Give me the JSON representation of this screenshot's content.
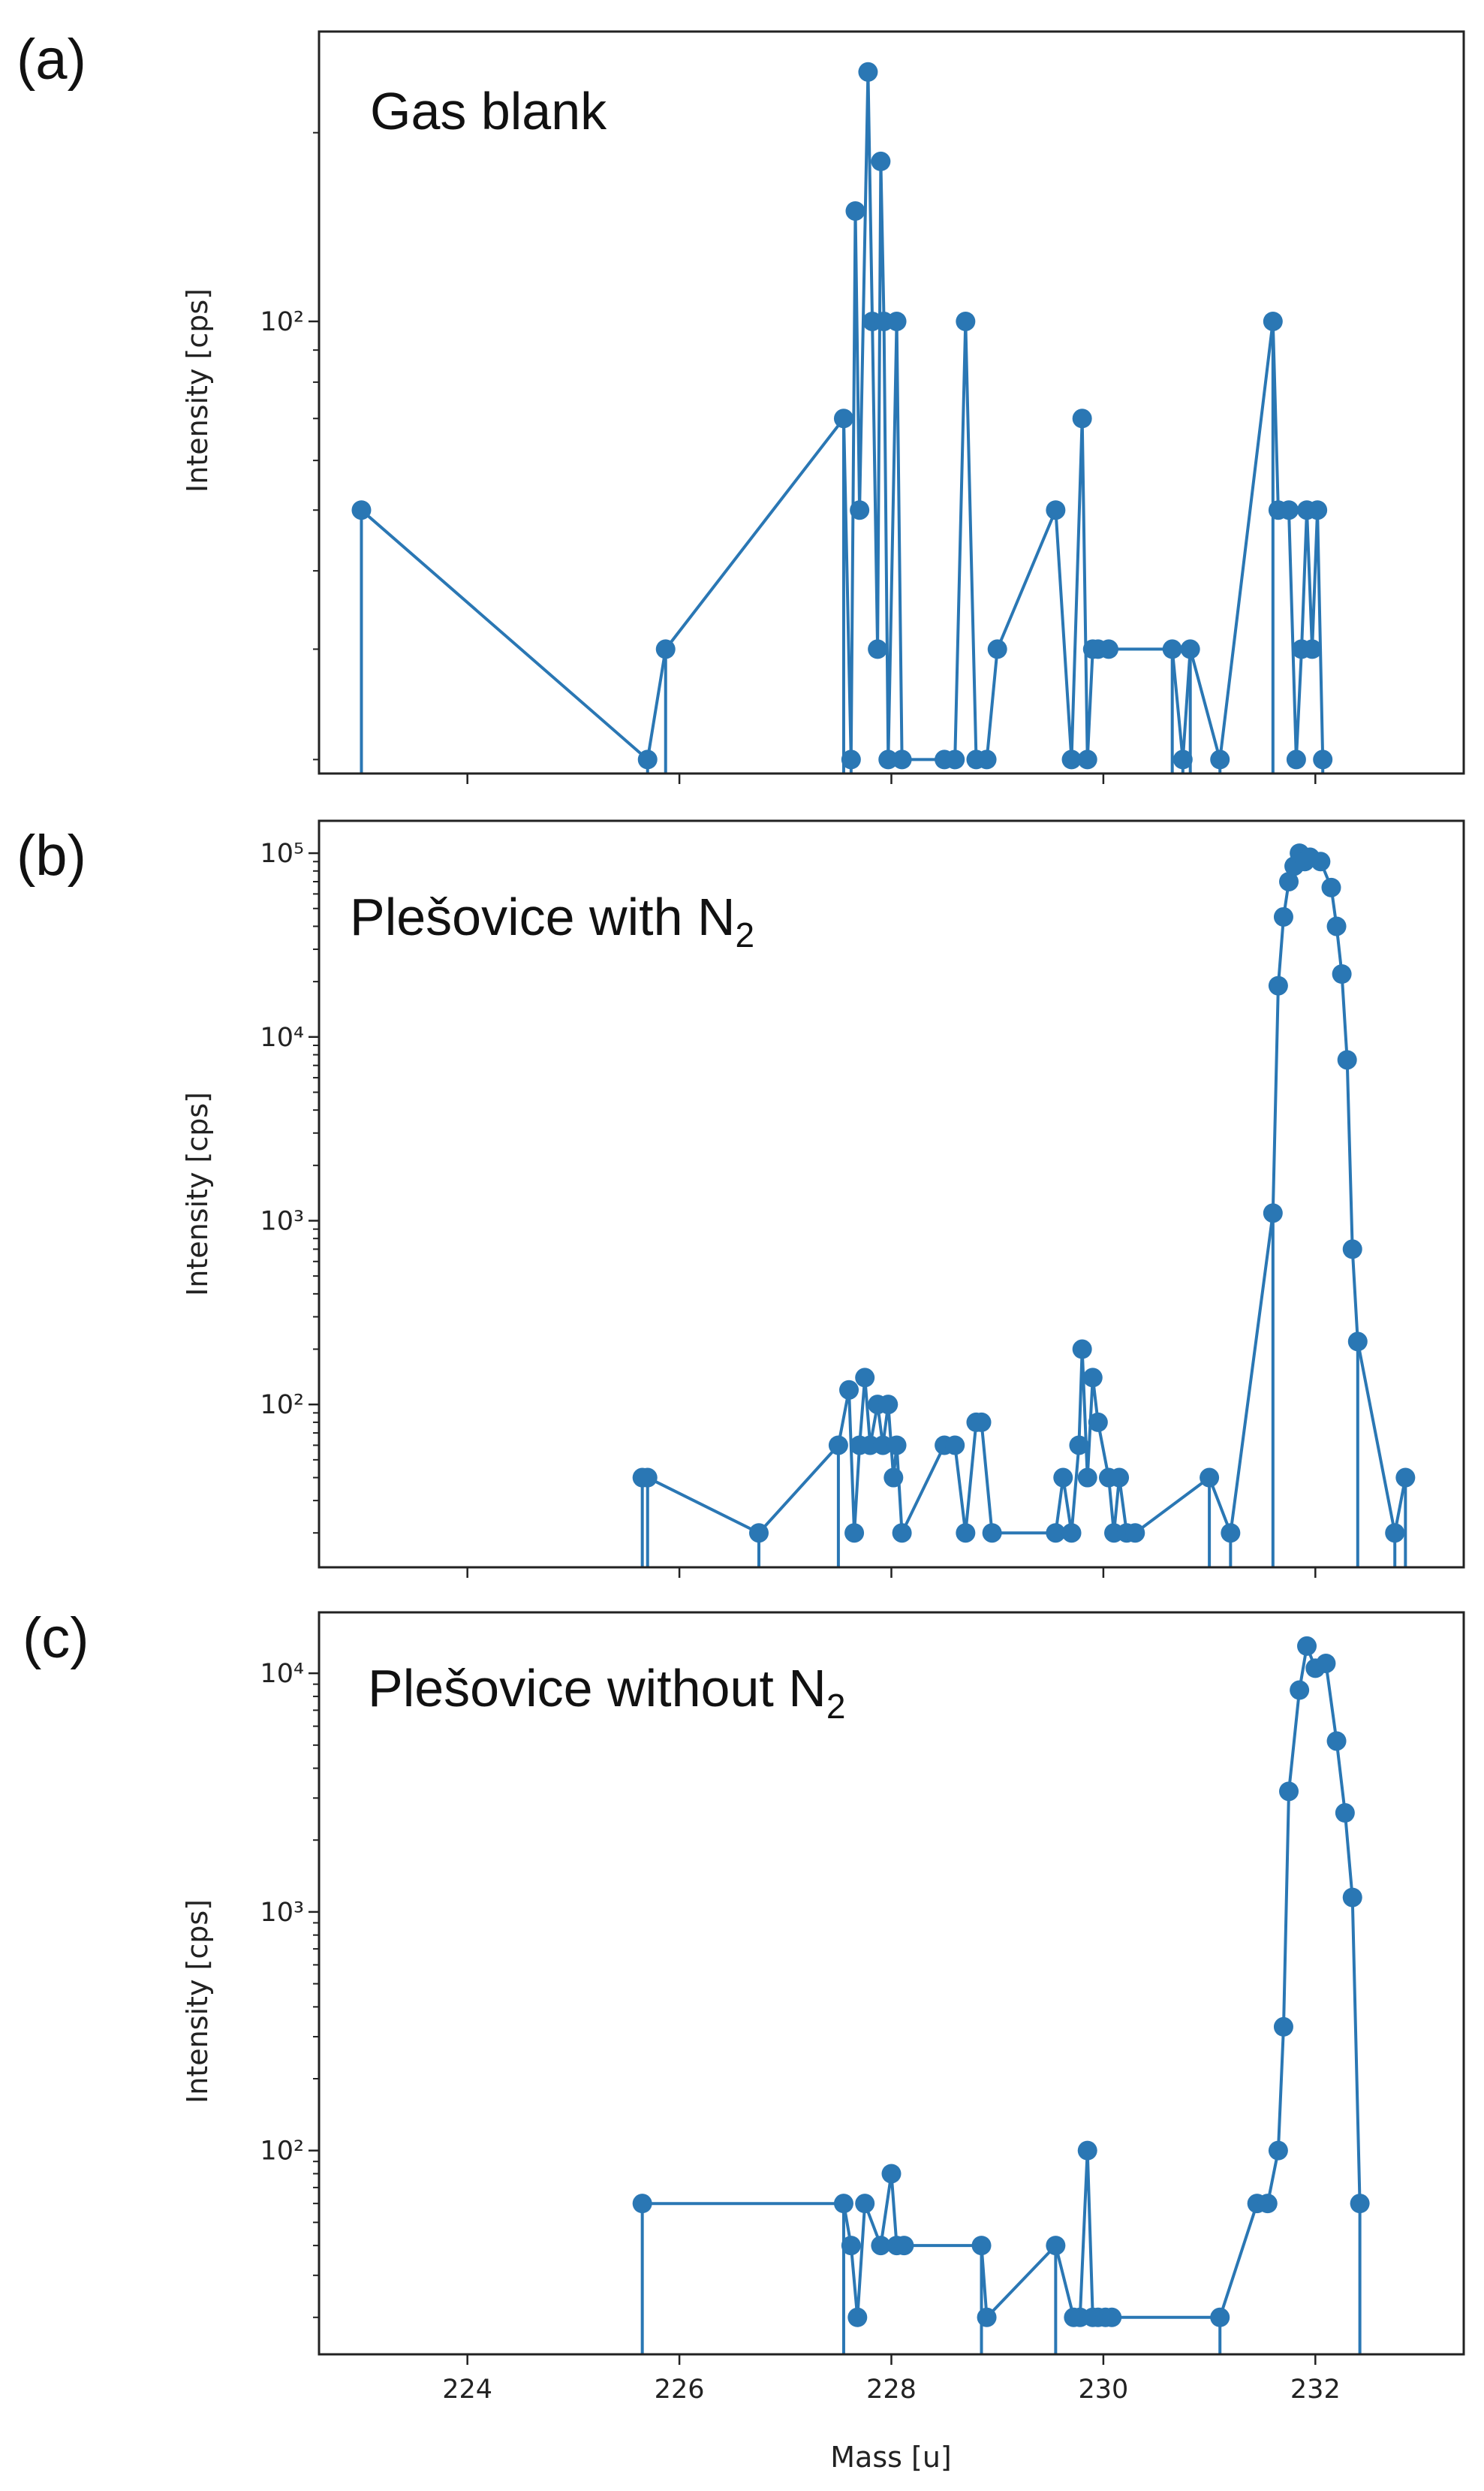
{
  "colors": {
    "series": "#2a77b4",
    "axis": "#222222"
  },
  "chart_data": [
    {
      "type": "line",
      "panel_label": "(a)",
      "annotation": "Gas blank",
      "ylabel": "Intensity [cps]",
      "xlabel": "Mass [u]",
      "yscale": "log",
      "xlim": [
        222.6,
        233.4
      ],
      "ylim": [
        19,
        290
      ],
      "yticks": [
        {
          "value": 100,
          "label": "10²"
        }
      ],
      "xticks": [
        224,
        226,
        228,
        230,
        232
      ],
      "show_xtick_labels": false,
      "x": [
        223.0,
        225.7,
        225.87,
        227.55,
        227.62,
        227.66,
        227.7,
        227.78,
        227.82,
        227.87,
        227.9,
        227.93,
        227.97,
        228.05,
        228.1,
        228.5,
        228.6,
        228.7,
        228.8,
        228.9,
        229.0,
        229.55,
        229.7,
        229.8,
        229.85,
        229.9,
        229.95,
        230.05,
        230.65,
        230.75,
        230.82,
        231.1,
        231.6,
        231.65,
        231.75,
        231.82,
        231.87,
        231.92,
        231.97,
        232.02,
        232.07
      ],
      "values": [
        50,
        20,
        30,
        70,
        20,
        150,
        50,
        250,
        100,
        30,
        180,
        100,
        20,
        100,
        20,
        20,
        20,
        100,
        20,
        20,
        30,
        50,
        20,
        70,
        20,
        30,
        30,
        30,
        30,
        20,
        30,
        20,
        100,
        50,
        50,
        20,
        30,
        50,
        30,
        50,
        20
      ],
      "stems": [
        [
          223.0,
          50
        ],
        [
          225.7,
          20
        ],
        [
          225.87,
          30
        ],
        [
          227.55,
          70
        ],
        [
          227.62,
          20
        ],
        [
          230.65,
          30
        ],
        [
          230.75,
          20
        ],
        [
          230.82,
          30
        ],
        [
          231.1,
          20
        ],
        [
          231.6,
          100
        ],
        [
          232.07,
          20
        ]
      ]
    },
    {
      "type": "line",
      "panel_label": "(b)",
      "annotation": "Plešovice with N",
      "annotation_subscript": "2",
      "ylabel": "Intensity [cps]",
      "xlabel": "Mass [u]",
      "yscale": "log",
      "xlim": [
        222.6,
        233.4
      ],
      "ylim": [
        13,
        150000
      ],
      "yticks": [
        {
          "value": 100,
          "label": "10²"
        },
        {
          "value": 1000,
          "label": "10³"
        },
        {
          "value": 10000,
          "label": "10⁴"
        },
        {
          "value": 100000,
          "label": "10⁵"
        }
      ],
      "xticks": [
        224,
        226,
        228,
        230,
        232
      ],
      "show_xtick_labels": false,
      "x": [
        225.65,
        225.7,
        226.75,
        227.5,
        227.6,
        227.65,
        227.7,
        227.75,
        227.8,
        227.87,
        227.92,
        227.97,
        228.02,
        228.05,
        228.1,
        228.5,
        228.6,
        228.7,
        228.8,
        228.85,
        228.95,
        229.55,
        229.62,
        229.7,
        229.77,
        229.8,
        229.85,
        229.9,
        229.95,
        230.05,
        230.1,
        230.15,
        230.22,
        230.3,
        231.0,
        231.2,
        231.6,
        231.65,
        231.7,
        231.75,
        231.8,
        231.85,
        231.9,
        231.95,
        232.05,
        232.15,
        232.2,
        232.25,
        232.3,
        232.35,
        232.4,
        232.75,
        232.85
      ],
      "values": [
        40,
        40,
        20,
        60,
        120,
        20,
        60,
        140,
        60,
        100,
        60,
        100,
        40,
        60,
        20,
        60,
        60,
        20,
        80,
        80,
        20,
        20,
        40,
        20,
        60,
        200,
        40,
        140,
        80,
        40,
        20,
        40,
        20,
        20,
        40,
        20,
        1100,
        19000,
        45000,
        70000,
        85000,
        100000,
        90000,
        95000,
        90000,
        65000,
        40000,
        22000,
        7500,
        700,
        220,
        20,
        40
      ],
      "stems": [
        [
          225.65,
          40
        ],
        [
          225.7,
          40
        ],
        [
          226.75,
          20
        ],
        [
          227.5,
          60
        ],
        [
          231.0,
          40
        ],
        [
          231.2,
          20
        ],
        [
          231.6,
          1100
        ],
        [
          232.4,
          220
        ],
        [
          232.75,
          20
        ],
        [
          232.85,
          40
        ]
      ]
    },
    {
      "type": "line",
      "panel_label": "(c)",
      "annotation": "Plešovice without N",
      "annotation_subscript": "2",
      "ylabel": "Intensity [cps]",
      "xlabel": "Mass [u]",
      "yscale": "log",
      "xlim": [
        222.6,
        233.4
      ],
      "ylim": [
        14,
        18000
      ],
      "yticks": [
        {
          "value": 100,
          "label": "10²"
        },
        {
          "value": 1000,
          "label": "10³"
        },
        {
          "value": 10000,
          "label": "10⁴"
        }
      ],
      "xticks": [
        224,
        226,
        228,
        230,
        232
      ],
      "show_xtick_labels": true,
      "x": [
        225.65,
        227.55,
        227.62,
        227.68,
        227.75,
        227.9,
        228.0,
        228.05,
        228.12,
        228.85,
        228.9,
        229.55,
        229.72,
        229.78,
        229.85,
        229.9,
        229.95,
        230.02,
        230.08,
        231.1,
        231.45,
        231.55,
        231.65,
        231.7,
        231.75,
        231.85,
        231.92,
        232.0,
        232.1,
        232.2,
        232.28,
        232.35,
        232.42
      ],
      "values": [
        60,
        60,
        40,
        20,
        60,
        40,
        80,
        40,
        40,
        40,
        20,
        40,
        20,
        20,
        100,
        20,
        20,
        20,
        20,
        20,
        60,
        60,
        100,
        330,
        3200,
        8500,
        13000,
        10500,
        11000,
        5200,
        2600,
        1150,
        60
      ],
      "stems": [
        [
          225.65,
          60
        ],
        [
          227.55,
          60
        ],
        [
          228.85,
          40
        ],
        [
          229.55,
          40
        ],
        [
          231.1,
          20
        ],
        [
          232.42,
          60
        ]
      ]
    }
  ]
}
